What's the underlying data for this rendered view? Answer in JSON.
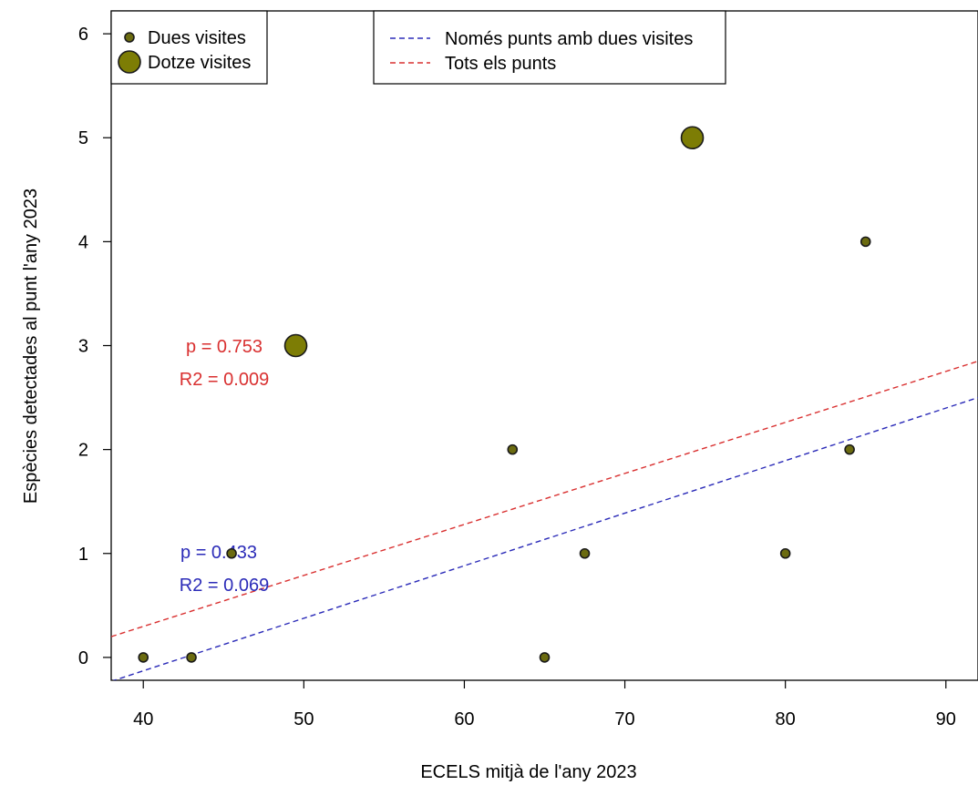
{
  "chart_data": {
    "type": "scatter",
    "xlabel": "ECELS mitjà de l'any 2023",
    "ylabel": "Espècies detectades al punt l'any 2023",
    "xlim": [
      38,
      92
    ],
    "ylim": [
      -0.22,
      6.22
    ],
    "xticks": [
      40,
      50,
      60,
      70,
      80,
      90
    ],
    "yticks": [
      0,
      1,
      2,
      3,
      4,
      5,
      6
    ],
    "grid": false,
    "series": [
      {
        "name": "Dues visites",
        "marker": "small-circle",
        "color": "#6b6b10",
        "points": [
          {
            "x": 40,
            "y": 0
          },
          {
            "x": 43,
            "y": 0
          },
          {
            "x": 45.5,
            "y": 1
          },
          {
            "x": 63,
            "y": 2
          },
          {
            "x": 65,
            "y": 0
          },
          {
            "x": 67.5,
            "y": 1
          },
          {
            "x": 80,
            "y": 1
          },
          {
            "x": 84,
            "y": 2
          },
          {
            "x": 85,
            "y": 4
          }
        ]
      },
      {
        "name": "Dotze visites",
        "marker": "large-circle",
        "color": "#7d7d05",
        "points": [
          {
            "x": 49.5,
            "y": 3
          },
          {
            "x": 74.2,
            "y": 5
          }
        ]
      }
    ],
    "lines": [
      {
        "name": "Només punts amb dues visites",
        "color": "#2b2bb8",
        "style": "dashed",
        "x": [
          38,
          92
        ],
        "y": [
          -0.23,
          2.5
        ],
        "annotation": {
          "p": "p = 0.433",
          "r2": "R2 = 0.069"
        }
      },
      {
        "name": "Tots els punts",
        "color": "#d93030",
        "style": "dashed",
        "x": [
          38,
          92
        ],
        "y": [
          0.2,
          2.85
        ],
        "annotation": {
          "p": "p = 0.753",
          "r2": "R2 = 0.009"
        }
      }
    ],
    "legends": [
      {
        "position": "top-left",
        "entries": [
          "Dues visites",
          "Dotze visites"
        ]
      },
      {
        "position": "top-center",
        "entries": [
          "Només punts amb dues visites",
          "Tots els punts"
        ]
      }
    ]
  }
}
